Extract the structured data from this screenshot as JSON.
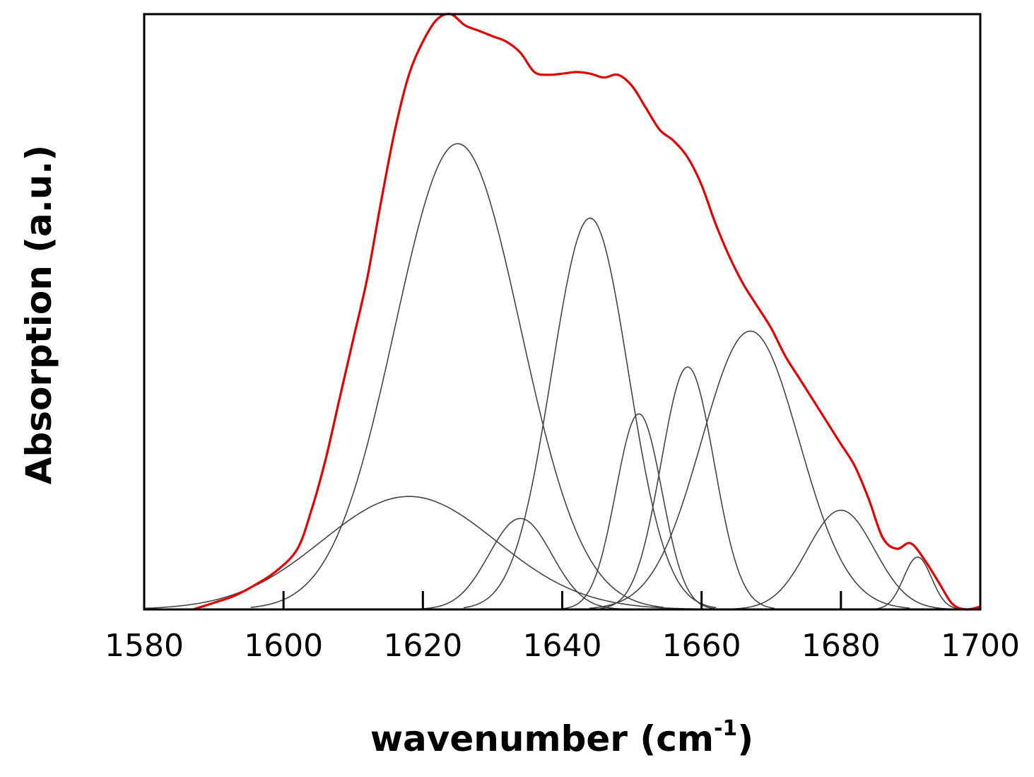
{
  "chart_data": {
    "type": "line",
    "title": "",
    "xlabel": "wavenumber (cm",
    "xlabel_sup": "-1",
    "xlabel_close": ")",
    "ylabel": "Absorption (a.u.)",
    "xlim": [
      1580,
      1700
    ],
    "ylim": [
      0,
      1.08
    ],
    "x_ticks": [
      1580,
      1600,
      1620,
      1640,
      1660,
      1680,
      1700
    ],
    "y_ticks_shown": false,
    "grid": false,
    "legend": "none",
    "colors": {
      "spectrum": "#e00000",
      "fit_sum": "#333333",
      "components": "#444444",
      "axes": "#000000"
    },
    "x": [
      1587,
      1590,
      1593,
      1596,
      1599,
      1602,
      1604,
      1606,
      1608,
      1610,
      1612,
      1614,
      1616,
      1618,
      1620,
      1622,
      1624,
      1626,
      1628,
      1630,
      1632,
      1634,
      1636,
      1638,
      1640,
      1642,
      1644,
      1646,
      1648,
      1650,
      1652,
      1654,
      1656,
      1658,
      1660,
      1662,
      1664,
      1666,
      1668,
      1670,
      1672,
      1674,
      1676,
      1678,
      1680,
      1682,
      1684,
      1686,
      1688,
      1690,
      1692,
      1694,
      1696,
      1698,
      1700
    ],
    "series": [
      {
        "values": [
          0.0,
          0.012,
          0.025,
          0.045,
          0.07,
          0.11,
          0.18,
          0.27,
          0.38,
          0.49,
          0.6,
          0.74,
          0.87,
          0.97,
          1.03,
          1.07,
          1.08,
          1.06,
          1.05,
          1.04,
          1.03,
          1.01,
          0.975,
          0.97,
          0.972,
          0.975,
          0.972,
          0.965,
          0.97,
          0.95,
          0.91,
          0.87,
          0.85,
          0.82,
          0.77,
          0.7,
          0.64,
          0.59,
          0.55,
          0.51,
          0.46,
          0.42,
          0.38,
          0.34,
          0.3,
          0.26,
          0.2,
          0.13,
          0.11,
          0.12,
          0.09,
          0.05,
          0.01,
          0.0,
          0.005
        ]
      }
    ],
    "components": [
      {
        "center": 1625.0,
        "height": 0.845,
        "width": 9.0
      },
      {
        "center": 1644.0,
        "height": 0.71,
        "width": 5.5
      },
      {
        "center": 1667.0,
        "height": 0.505,
        "width": 7.0
      },
      {
        "center": 1658.0,
        "height": 0.44,
        "width": 3.8
      },
      {
        "center": 1651.0,
        "height": 0.355,
        "width": 3.3
      },
      {
        "center": 1618.0,
        "height": 0.205,
        "width": 12.5
      },
      {
        "center": 1680.0,
        "height": 0.18,
        "width": 4.8
      },
      {
        "center": 1634.0,
        "height": 0.165,
        "width": 4.5
      },
      {
        "center": 1691.0,
        "height": 0.095,
        "width": 2.0
      }
    ]
  }
}
